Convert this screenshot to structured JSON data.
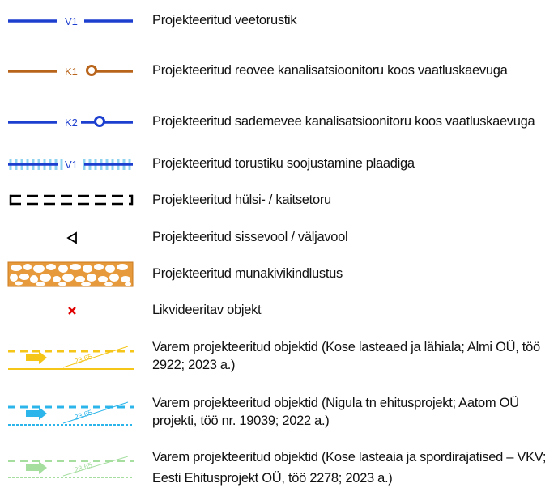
{
  "legend": {
    "items": [
      {
        "symbol": "water-pipe-line",
        "code": "V1",
        "color": "#1d3fcf",
        "label": "Projekteeritud veetorustik"
      },
      {
        "symbol": "sewer-line-manhole",
        "code": "K1",
        "color": "#b8651b",
        "label": "Projekteeritud reovee kanalisatsioonitoru koos vaatluskaevuga"
      },
      {
        "symbol": "storm-line-manhole",
        "code": "K2",
        "color": "#1d3fcf",
        "label": "Projekteeritud sademevee kanalisatsioonitoru koos vaatluskaevuga"
      },
      {
        "symbol": "insulated-pipe-line",
        "code": "V1",
        "color": "#1d3fcf",
        "hatch_color": "#8fd3f0",
        "label": "Projekteeritud torustiku soojustamine plaadiga"
      },
      {
        "symbol": "sleeve-pipe-dashed",
        "label": "Projekteeritud hülsi- / kaitsetoru"
      },
      {
        "symbol": "inlet-outlet-triangle",
        "label": "Projekteeritud sissevool / väljavool"
      },
      {
        "symbol": "cobblestone-fill",
        "color": "#e69a3c",
        "label": "Projekteeritud munakivikindlustus"
      },
      {
        "symbol": "red-cross",
        "color": "#e00000",
        "label": "Likvideeritav objekt"
      },
      {
        "symbol": "prior-project-yellow",
        "color": "#f5c518",
        "elevation": "23.65",
        "label": "Varem projekteeritud objektid (Kose lasteaed ja lähiala; Almi OÜ, töö 2922; 2023 a.)"
      },
      {
        "symbol": "prior-project-cyan",
        "color": "#2cb5ea",
        "elevation": "23.65",
        "label": "Varem projekteeritud objektid (Nigula tn ehitusprojekt; Aatom OÜ projekti, töö nr. 19039; 2022 a.)"
      },
      {
        "symbol": "prior-project-green",
        "color": "#a6dea0",
        "elevation": "23.65",
        "label": "Varem projekteeritud objektid (Kose lasteaia ja spordirajatised – VKV; Eesti Ehitusprojekt OÜ, töö 2278; 2023 a.)"
      }
    ]
  }
}
